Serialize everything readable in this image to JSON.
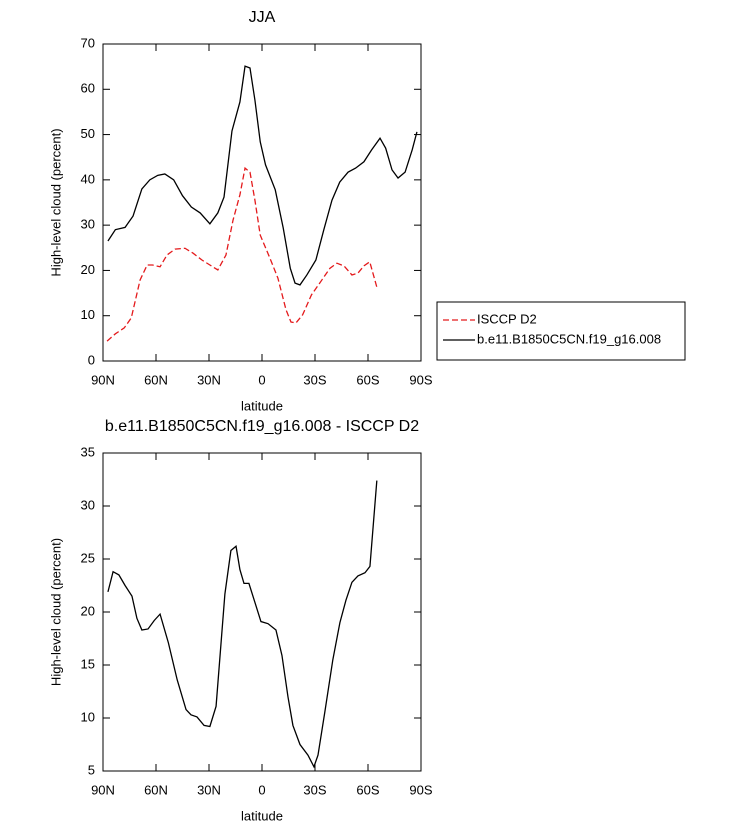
{
  "chart_data": [
    {
      "type": "line",
      "title": "JJA",
      "xlabel": "latitude",
      "ylabel": "High-level cloud (percent)",
      "xlim": [
        90,
        -90
      ],
      "xticks": [
        {
          "value": 90,
          "label": "90N"
        },
        {
          "value": 60,
          "label": "60N"
        },
        {
          "value": 30,
          "label": "30N"
        },
        0,
        {
          "value": -30,
          "label": "30S"
        },
        {
          "value": -60,
          "label": "60S"
        },
        {
          "value": -90,
          "label": "90S"
        }
      ],
      "ylim": [
        0,
        70
      ],
      "yticks": [
        0,
        10,
        20,
        30,
        40,
        50,
        60,
        70
      ],
      "legend": "right",
      "series": [
        {
          "name": "ISCCP D2",
          "color": "#e41a1c",
          "dash": true,
          "x": [
            87.7,
            83,
            78,
            74,
            69,
            65,
            62,
            57.7,
            53.8,
            49.2,
            43.6,
            39,
            34,
            29.5,
            25,
            20.4,
            16.4,
            12.5,
            9.6,
            6.8,
            4,
            1,
            -4.5,
            -9,
            -13.6,
            -16.4,
            -19.2,
            -23,
            -28,
            -33.9,
            -38.5,
            -42.4,
            -46.4,
            -50.9,
            -54.3,
            -57.7,
            -61,
            -65
          ],
          "values": [
            4.4,
            6,
            7.3,
            9.5,
            17.9,
            21.2,
            21.2,
            20.8,
            23.4,
            24.7,
            24.9,
            23.8,
            22.3,
            21.2,
            20.1,
            23.4,
            31.1,
            36.7,
            42.6,
            41.7,
            35.5,
            27.8,
            22.7,
            18.3,
            11.3,
            8.6,
            8.4,
            10.2,
            14.6,
            17.9,
            20.5,
            21.6,
            21,
            19,
            19.4,
            21,
            21.9,
            16.3
          ]
        },
        {
          "name": "b.e11.B1850C5CN.f19_g16.008",
          "color": "#000000",
          "dash": false,
          "x": [
            87.2,
            83,
            77.5,
            73,
            68,
            63.5,
            59,
            55,
            50,
            45,
            40,
            35,
            29.5,
            25,
            21.5,
            17,
            12.5,
            9.6,
            6.8,
            4,
            1,
            -2,
            -7.5,
            -12,
            -16,
            -18.7,
            -21.5,
            -25.4,
            -30.5,
            -35,
            -39.6,
            -44,
            -48.7,
            -53,
            -57.7,
            -62,
            -66.8,
            -70,
            -73.6,
            -77,
            -81,
            -85,
            -87.7
          ],
          "values": [
            26.5,
            29,
            29.5,
            32,
            38,
            40,
            41,
            41.3,
            40,
            36.5,
            34,
            32.7,
            30.3,
            32.7,
            36.2,
            50.8,
            57.2,
            65.1,
            64.7,
            57.6,
            48.4,
            43.3,
            37.8,
            29.4,
            20.5,
            17.2,
            16.8,
            19,
            22.3,
            29,
            35.5,
            39.5,
            41.7,
            42.6,
            44,
            46.6,
            49.2,
            47,
            42.2,
            40.4,
            41.7,
            46.6,
            50.6
          ]
        }
      ]
    },
    {
      "type": "line",
      "title": "b.e11.B1850C5CN.f19_g16.008 - ISCCP D2",
      "xlabel": "latitude",
      "ylabel": "High-level cloud (percent)",
      "xlim": [
        90,
        -90
      ],
      "xticks": [
        {
          "value": 90,
          "label": "90N"
        },
        {
          "value": 60,
          "label": "60N"
        },
        {
          "value": 30,
          "label": "30N"
        },
        0,
        {
          "value": -30,
          "label": "30S"
        },
        {
          "value": -60,
          "label": "60S"
        },
        {
          "value": -90,
          "label": "90S"
        }
      ],
      "ylim": [
        5,
        35
      ],
      "yticks": [
        5,
        10,
        15,
        20,
        25,
        30,
        35
      ],
      "series": [
        {
          "color": "#000000",
          "dash": false,
          "x": [
            87.2,
            84.3,
            81,
            77.5,
            73.6,
            70.8,
            68,
            64.5,
            61,
            57.7,
            53,
            48,
            43,
            40.2,
            36.8,
            32.8,
            29.5,
            26,
            21,
            17.6,
            14.7,
            12.5,
            10.2,
            7.4,
            4,
            0.6,
            -3.4,
            -7.9,
            -11.3,
            -14.7,
            -17.5,
            -21.5,
            -26,
            -29.4,
            -31.7,
            -35.6,
            -40.1,
            -44.1,
            -47.5,
            -50.9,
            -54.3,
            -58.3,
            -61.1,
            -65
          ],
          "values": [
            21.9,
            23.8,
            23.5,
            22.5,
            21.5,
            19.4,
            18.3,
            18.4,
            19.2,
            19.8,
            17.1,
            13.6,
            10.8,
            10.3,
            10.1,
            9.3,
            9.2,
            11.1,
            21.7,
            25.8,
            26.2,
            24,
            22.7,
            22.7,
            20.9,
            19.1,
            18.9,
            18.3,
            15.9,
            12,
            9.3,
            7.5,
            6.5,
            5.4,
            6.5,
            10.6,
            15.5,
            19,
            21.1,
            22.8,
            23.4,
            23.7,
            24.3,
            32.4
          ]
        }
      ]
    }
  ]
}
